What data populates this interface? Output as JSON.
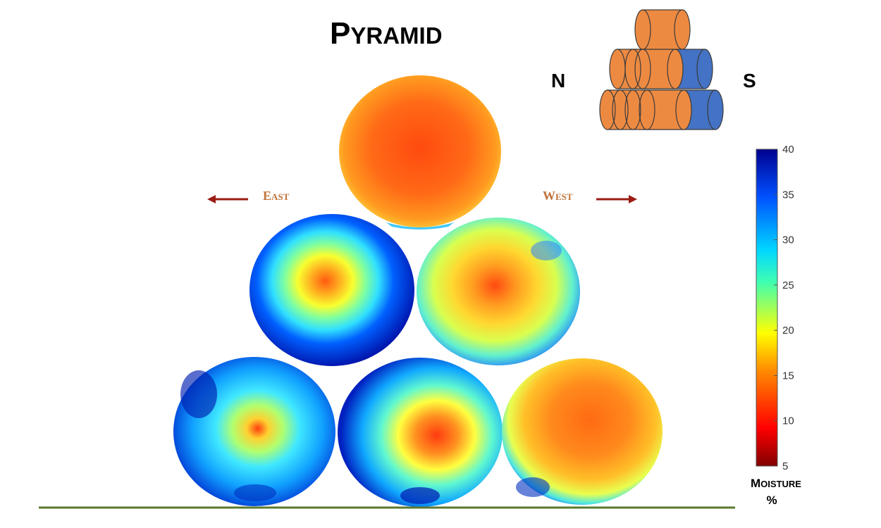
{
  "title": {
    "first": "P",
    "rest": "YRAMID"
  },
  "directions": {
    "east": {
      "first": "E",
      "rest": "AST"
    },
    "west": {
      "first": "W",
      "rest": "EST"
    },
    "north": "N",
    "south": "S"
  },
  "colorbar": {
    "label_first": "M",
    "label_rest": "OISTURE",
    "unit": "%",
    "min": 5,
    "max": 40,
    "ticks": [
      "5",
      "10",
      "15",
      "20",
      "25",
      "30",
      "35",
      "40"
    ]
  },
  "bales": [
    {
      "id": "top",
      "avg_moisture": 14,
      "center_moisture": 13
    },
    {
      "id": "middle-east",
      "avg_moisture": 30,
      "center_moisture": 14
    },
    {
      "id": "middle-west",
      "avg_moisture": 22,
      "center_moisture": 13
    },
    {
      "id": "bottom-east",
      "avg_moisture": 29,
      "center_moisture": 13
    },
    {
      "id": "bottom-center",
      "avg_moisture": 26,
      "center_moisture": 12
    },
    {
      "id": "bottom-west",
      "avg_moisture": 17,
      "center_moisture": 14
    }
  ],
  "colors": {
    "orange_bale": "#ed8a42",
    "blue_bale": "#4472c4",
    "arrow": "#9b1c14",
    "ground": "#5a7a2e"
  }
}
